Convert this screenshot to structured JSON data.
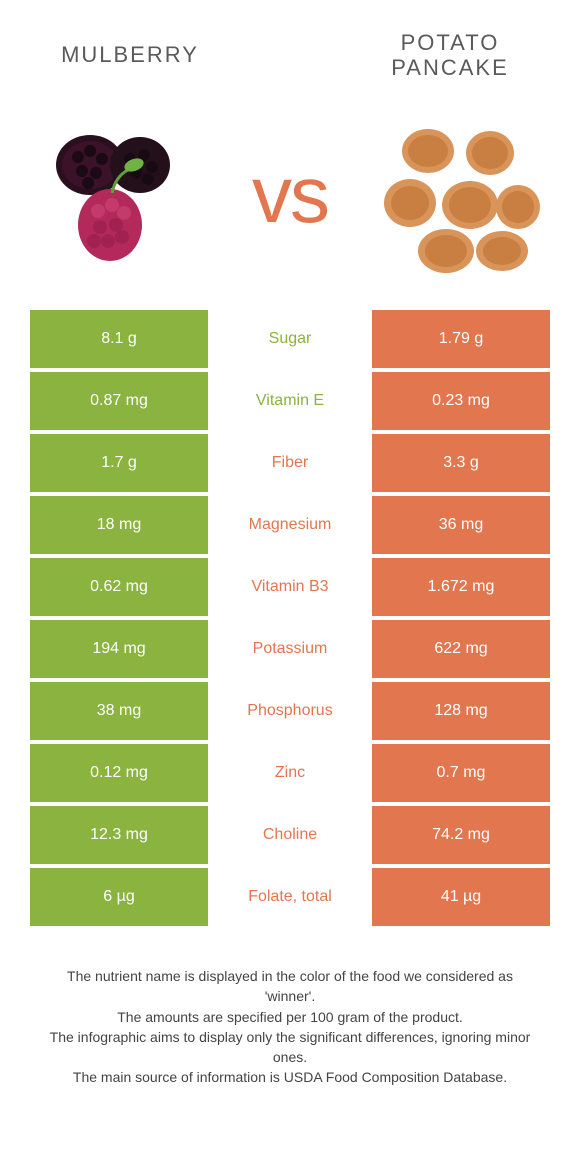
{
  "header": {
    "left_title": "Mulberry",
    "right_title": "Potato pancake",
    "vs": "vs"
  },
  "colors": {
    "left_bg": "#8ab33f",
    "right_bg": "#e2764f",
    "left_text": "#8ab33f",
    "right_text": "#e2764f",
    "cell_text": "#ffffff",
    "background": "#ffffff"
  },
  "rows": [
    {
      "nutrient": "Sugar",
      "left": "8.1 g",
      "right": "1.79 g",
      "winner": "left"
    },
    {
      "nutrient": "Vitamin E",
      "left": "0.87 mg",
      "right": "0.23 mg",
      "winner": "left"
    },
    {
      "nutrient": "Fiber",
      "left": "1.7 g",
      "right": "3.3 g",
      "winner": "right"
    },
    {
      "nutrient": "Magnesium",
      "left": "18 mg",
      "right": "36 mg",
      "winner": "right"
    },
    {
      "nutrient": "Vitamin B3",
      "left": "0.62 mg",
      "right": "1.672 mg",
      "winner": "right"
    },
    {
      "nutrient": "Potassium",
      "left": "194 mg",
      "right": "622 mg",
      "winner": "right"
    },
    {
      "nutrient": "Phosphorus",
      "left": "38 mg",
      "right": "128 mg",
      "winner": "right"
    },
    {
      "nutrient": "Zinc",
      "left": "0.12 mg",
      "right": "0.7 mg",
      "winner": "right"
    },
    {
      "nutrient": "Choline",
      "left": "12.3 mg",
      "right": "74.2 mg",
      "winner": "right"
    },
    {
      "nutrient": "Folate, total",
      "left": "6 µg",
      "right": "41 µg",
      "winner": "right"
    }
  ],
  "footnotes": [
    "The nutrient name is displayed in the color of the food we considered as 'winner'.",
    "The amounts are specified per 100 gram of the product.",
    "The infographic aims to display only the significant differences, ignoring minor ones.",
    "The main source of information is USDA Food Composition Database."
  ]
}
